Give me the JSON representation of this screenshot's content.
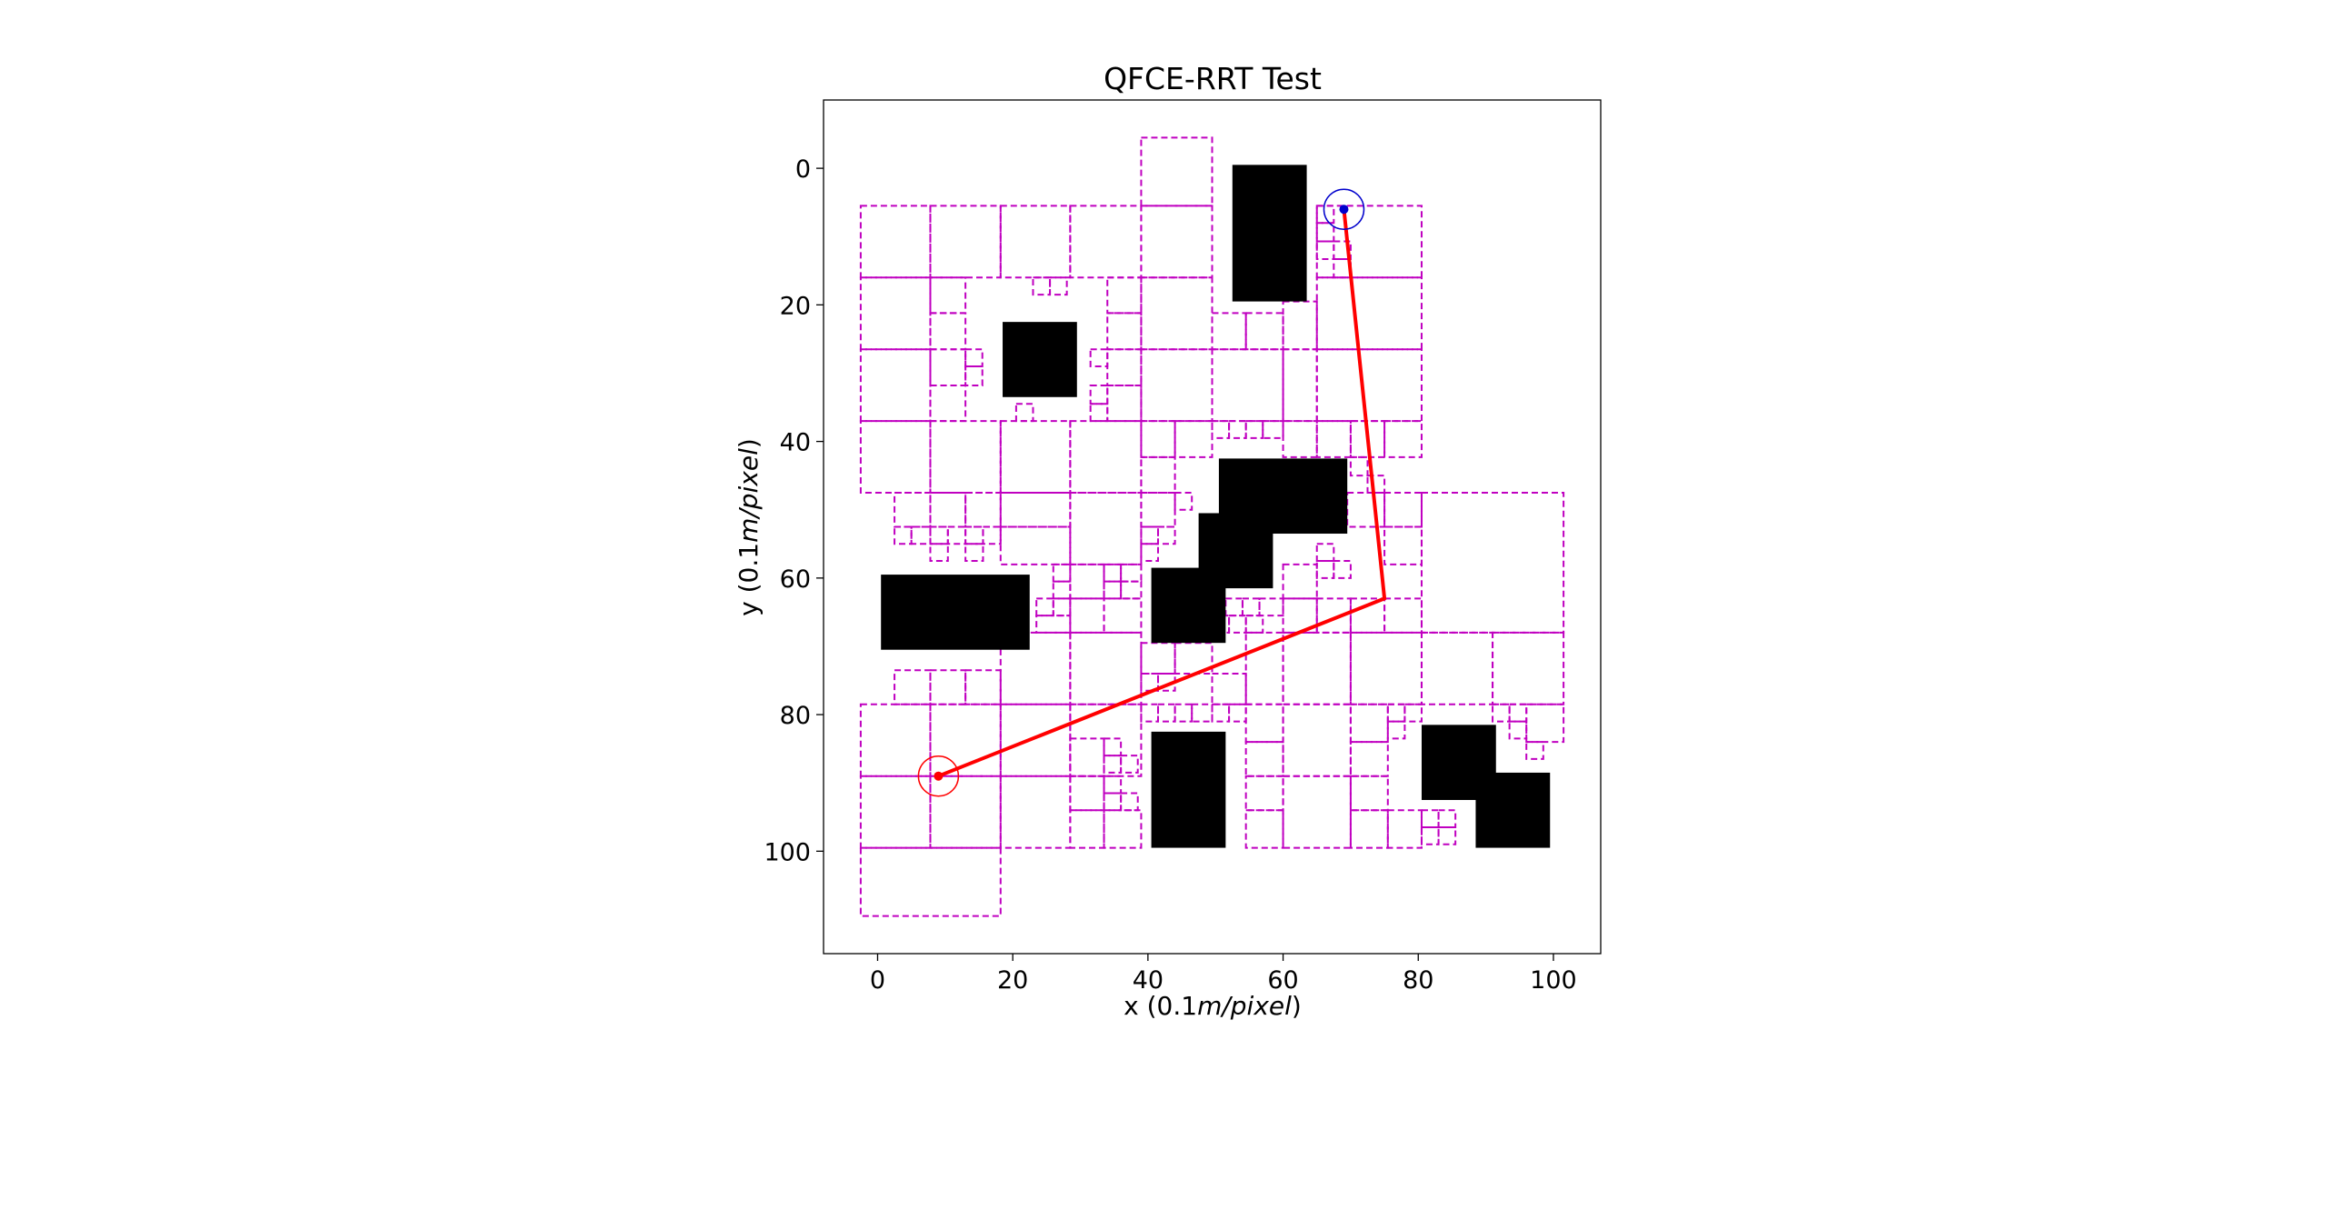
{
  "chart_data": {
    "type": "scatter",
    "title": "QFCE-RRT Test",
    "xlabel_prefix": "x (0.1",
    "xlabel_italic": "m/pixel",
    "xlabel_suffix": ")",
    "ylabel_prefix": "y (0.1",
    "ylabel_italic": "m/pixel",
    "ylabel_suffix": ")",
    "xlim": [
      -8,
      107
    ],
    "ylim": [
      115,
      -10
    ],
    "y_inverted": true,
    "xticks": [
      0,
      20,
      40,
      60,
      80,
      100
    ],
    "yticks": [
      0,
      20,
      40,
      60,
      80,
      100
    ],
    "grid": false,
    "colors": {
      "obstacle": "#000000",
      "cell": "#c000c0",
      "path": "#ff0000",
      "start": "#ff0000",
      "goal": "#0000cc"
    },
    "start": [
      9,
      89
    ],
    "goal": [
      69,
      6
    ],
    "path": [
      [
        9,
        89
      ],
      [
        75,
        63
      ],
      [
        69,
        6
      ]
    ],
    "obstacles": [
      [
        52.5,
        -0.5,
        63.5,
        19.5
      ],
      [
        18.5,
        22.5,
        29.5,
        33.5
      ],
      [
        50.5,
        42.5,
        69.5,
        53.5
      ],
      [
        47.5,
        50.5,
        58.5,
        61.5
      ],
      [
        0.5,
        59.5,
        22.5,
        70.5
      ],
      [
        40.5,
        58.5,
        51.5,
        69.5
      ],
      [
        40.5,
        82.5,
        51.5,
        99.5
      ],
      [
        80.5,
        81.5,
        91.5,
        92.5
      ],
      [
        88.5,
        88.5,
        99.5,
        99.5
      ]
    ],
    "cells": [
      [
        -2.5,
        5.5,
        7.8,
        16
      ],
      [
        7.8,
        5.5,
        18.2,
        16
      ],
      [
        18.2,
        5.5,
        28.5,
        16
      ],
      [
        28.5,
        5.5,
        39,
        16
      ],
      [
        39,
        5.5,
        49.5,
        16
      ],
      [
        39,
        -4.5,
        49.5,
        5.5
      ],
      [
        65,
        5.5,
        80.5,
        16
      ],
      [
        65,
        16,
        80.5,
        26.5
      ],
      [
        65,
        26.5,
        80.5,
        37
      ],
      [
        -2.5,
        16,
        7.8,
        26.5
      ],
      [
        -2.5,
        26.5,
        7.8,
        37
      ],
      [
        7.8,
        16,
        13,
        21.2
      ],
      [
        7.8,
        21.2,
        13,
        26.5
      ],
      [
        7.8,
        26.5,
        13,
        31.8
      ],
      [
        7.8,
        31.8,
        13,
        37
      ],
      [
        13,
        26.5,
        15.5,
        29
      ],
      [
        13,
        29,
        15.5,
        31.8
      ],
      [
        34,
        16,
        39,
        21.2
      ],
      [
        34,
        21.2,
        39,
        26.5
      ],
      [
        34,
        26.5,
        39,
        31.8
      ],
      [
        34,
        31.8,
        39,
        37
      ],
      [
        31.5,
        26.5,
        34,
        29
      ],
      [
        31.5,
        31.8,
        34,
        34.5
      ],
      [
        31.5,
        34.5,
        34,
        37
      ],
      [
        39,
        16,
        49.5,
        26.5
      ],
      [
        39,
        26.5,
        49.5,
        37
      ],
      [
        49.5,
        21.2,
        54.5,
        26.5
      ],
      [
        54.5,
        21.2,
        60,
        26.5
      ],
      [
        49.5,
        26.5,
        60,
        37
      ],
      [
        60,
        26.5,
        65,
        37
      ],
      [
        60,
        19.5,
        65,
        26.5
      ],
      [
        23,
        16,
        25.5,
        18.5
      ],
      [
        25.5,
        16,
        28,
        18.5
      ],
      [
        20.5,
        34.5,
        23,
        37
      ],
      [
        65,
        5.5,
        67.5,
        8
      ],
      [
        65,
        8,
        67.5,
        10.7
      ],
      [
        65,
        10.7,
        67.5,
        13.3
      ],
      [
        67.5,
        10.7,
        70,
        13.3
      ],
      [
        67.5,
        13.3,
        70,
        16
      ],
      [
        -2.5,
        37,
        7.8,
        47.5
      ],
      [
        7.8,
        37,
        18.2,
        47.5
      ],
      [
        18.2,
        37,
        28.5,
        47.5
      ],
      [
        28.5,
        37,
        39,
        47.5
      ],
      [
        39,
        37,
        44,
        42.3
      ],
      [
        44,
        37,
        49.5,
        42.3
      ],
      [
        49.5,
        37,
        52,
        39.5
      ],
      [
        52,
        37,
        54.5,
        39.5
      ],
      [
        54.5,
        37,
        57,
        39.5
      ],
      [
        57,
        37,
        60,
        39.5
      ],
      [
        60,
        37,
        65,
        42.3
      ],
      [
        65,
        37,
        70,
        42.3
      ],
      [
        70,
        37,
        75,
        42.3
      ],
      [
        75,
        37,
        80.5,
        42.3
      ],
      [
        2.5,
        47.5,
        7.8,
        52.5
      ],
      [
        7.8,
        47.5,
        13,
        52.5
      ],
      [
        13,
        47.5,
        18.2,
        52.5
      ],
      [
        18.2,
        47.5,
        28.5,
        52.5
      ],
      [
        2.5,
        52.5,
        5,
        55
      ],
      [
        5,
        52.5,
        7.8,
        55
      ],
      [
        7.8,
        52.5,
        10.4,
        55
      ],
      [
        10.4,
        52.5,
        13,
        55
      ],
      [
        13,
        52.5,
        15.6,
        55
      ],
      [
        15.6,
        52.5,
        18.2,
        55
      ],
      [
        7.8,
        55,
        10.4,
        57.5
      ],
      [
        13,
        55,
        15.6,
        57.5
      ],
      [
        28.5,
        47.5,
        39,
        58
      ],
      [
        18.2,
        52.5,
        28.5,
        58
      ],
      [
        39,
        42.3,
        44,
        47.5
      ],
      [
        39,
        47.5,
        44,
        52.5
      ],
      [
        44,
        47.5,
        46.5,
        50
      ],
      [
        39,
        52.5,
        41.5,
        55
      ],
      [
        41.5,
        52.5,
        44,
        55
      ],
      [
        39,
        55,
        41.5,
        57.5
      ],
      [
        70,
        42.3,
        72.5,
        45
      ],
      [
        72.5,
        45,
        75,
        47.5
      ],
      [
        75,
        47.5,
        80.5,
        52.5
      ],
      [
        75,
        52.5,
        80.5,
        58
      ],
      [
        80.5,
        47.5,
        101.5,
        68
      ],
      [
        80.5,
        68,
        91,
        78.5
      ],
      [
        91,
        68,
        101.5,
        78.5
      ],
      [
        69.5,
        47.5,
        75,
        52.5
      ],
      [
        65,
        55,
        67.5,
        57.5
      ],
      [
        67.5,
        57.5,
        70,
        60
      ],
      [
        65,
        57.5,
        67.5,
        60
      ],
      [
        26,
        58,
        28.5,
        60.5
      ],
      [
        26,
        60.5,
        28.5,
        63
      ],
      [
        23.5,
        63,
        26,
        65.5
      ],
      [
        26,
        63,
        28.5,
        65.5
      ],
      [
        23.5,
        65.5,
        28.5,
        68
      ],
      [
        28.5,
        58,
        33.5,
        63
      ],
      [
        33.5,
        58,
        36,
        60.5
      ],
      [
        36,
        58,
        39,
        60.5
      ],
      [
        33.5,
        60.5,
        36,
        63
      ],
      [
        36,
        60.5,
        39,
        63
      ],
      [
        28.5,
        63,
        33.5,
        68
      ],
      [
        33.5,
        63,
        39,
        68
      ],
      [
        18.2,
        68,
        28.5,
        78.5
      ],
      [
        28.5,
        68,
        39,
        78.5
      ],
      [
        39,
        69.5,
        44,
        74
      ],
      [
        44,
        69.5,
        49.5,
        74
      ],
      [
        51.5,
        63,
        54,
        65.5
      ],
      [
        54,
        63,
        56.5,
        65.5
      ],
      [
        56.5,
        63,
        60,
        65.5
      ],
      [
        60,
        58,
        65,
        63
      ],
      [
        49.5,
        65.5,
        52,
        68
      ],
      [
        52,
        65.5,
        54.5,
        68
      ],
      [
        54.5,
        65.5,
        57,
        68
      ],
      [
        60,
        63,
        65,
        68
      ],
      [
        65,
        63,
        70,
        68
      ],
      [
        70,
        63,
        75,
        68
      ],
      [
        75,
        63,
        80.5,
        68
      ],
      [
        2.5,
        73.5,
        7.8,
        78.5
      ],
      [
        7.8,
        73.5,
        13,
        78.5
      ],
      [
        13,
        73.5,
        18.2,
        78.5
      ],
      [
        39,
        74,
        41.5,
        76.5
      ],
      [
        41.5,
        74,
        44,
        76.5
      ],
      [
        49.5,
        74,
        54.5,
        78.5
      ],
      [
        54.5,
        68,
        60,
        78.5
      ],
      [
        60,
        68,
        70,
        78.5
      ],
      [
        70,
        68,
        80.5,
        78.5
      ],
      [
        -2.5,
        78.5,
        7.8,
        89
      ],
      [
        7.8,
        78.5,
        18.2,
        89
      ],
      [
        18.2,
        78.5,
        28.5,
        89
      ],
      [
        28.5,
        78.5,
        39,
        89
      ],
      [
        39,
        78.5,
        41.5,
        81
      ],
      [
        41.5,
        78.5,
        44,
        81
      ],
      [
        44,
        78.5,
        46.5,
        81
      ],
      [
        46.5,
        78.5,
        49.5,
        81
      ],
      [
        49.5,
        78.5,
        52,
        81
      ],
      [
        52,
        78.5,
        54.5,
        81
      ],
      [
        54.5,
        78.5,
        60,
        84
      ],
      [
        60,
        78.5,
        70,
        89
      ],
      [
        70,
        78.5,
        75.5,
        84
      ],
      [
        75.5,
        78.5,
        78,
        81
      ],
      [
        78,
        78.5,
        80.5,
        81
      ],
      [
        75.5,
        81,
        78,
        83.5
      ],
      [
        91,
        78.5,
        93.5,
        81
      ],
      [
        93.5,
        78.5,
        96,
        81
      ],
      [
        96,
        78.5,
        101.5,
        84
      ],
      [
        96,
        84,
        98.5,
        86.5
      ],
      [
        93.5,
        81,
        96,
        83.5
      ],
      [
        -2.5,
        89,
        7.8,
        99.5
      ],
      [
        7.8,
        89,
        18.2,
        99.5
      ],
      [
        18.2,
        89,
        28.5,
        99.5
      ],
      [
        -2.5,
        99.5,
        18.2,
        109.5
      ],
      [
        28.5,
        83.5,
        33.5,
        89
      ],
      [
        33.5,
        83.5,
        36,
        86
      ],
      [
        33.5,
        86,
        36,
        88.5
      ],
      [
        36,
        86,
        38.5,
        88.5
      ],
      [
        28.5,
        89,
        33.5,
        94
      ],
      [
        33.5,
        89,
        36,
        91.5
      ],
      [
        33.5,
        91.5,
        36,
        94
      ],
      [
        36,
        91.5,
        38.5,
        94
      ],
      [
        28.5,
        94,
        33.5,
        99.5
      ],
      [
        33.5,
        94,
        39,
        99.5
      ],
      [
        54.5,
        84,
        60,
        89
      ],
      [
        54.5,
        89,
        60,
        94
      ],
      [
        54.5,
        94,
        60,
        99.5
      ],
      [
        60,
        89,
        70,
        99.5
      ],
      [
        70,
        84,
        75.5,
        89
      ],
      [
        70,
        89,
        75.5,
        94
      ],
      [
        70,
        94,
        75.5,
        99.5
      ],
      [
        75.5,
        94,
        80.5,
        99.5
      ],
      [
        80.5,
        94,
        83,
        96.5
      ],
      [
        83,
        94,
        85.5,
        96.5
      ],
      [
        80.5,
        96.5,
        83,
        99
      ],
      [
        83,
        96.5,
        85.5,
        99
      ]
    ]
  }
}
